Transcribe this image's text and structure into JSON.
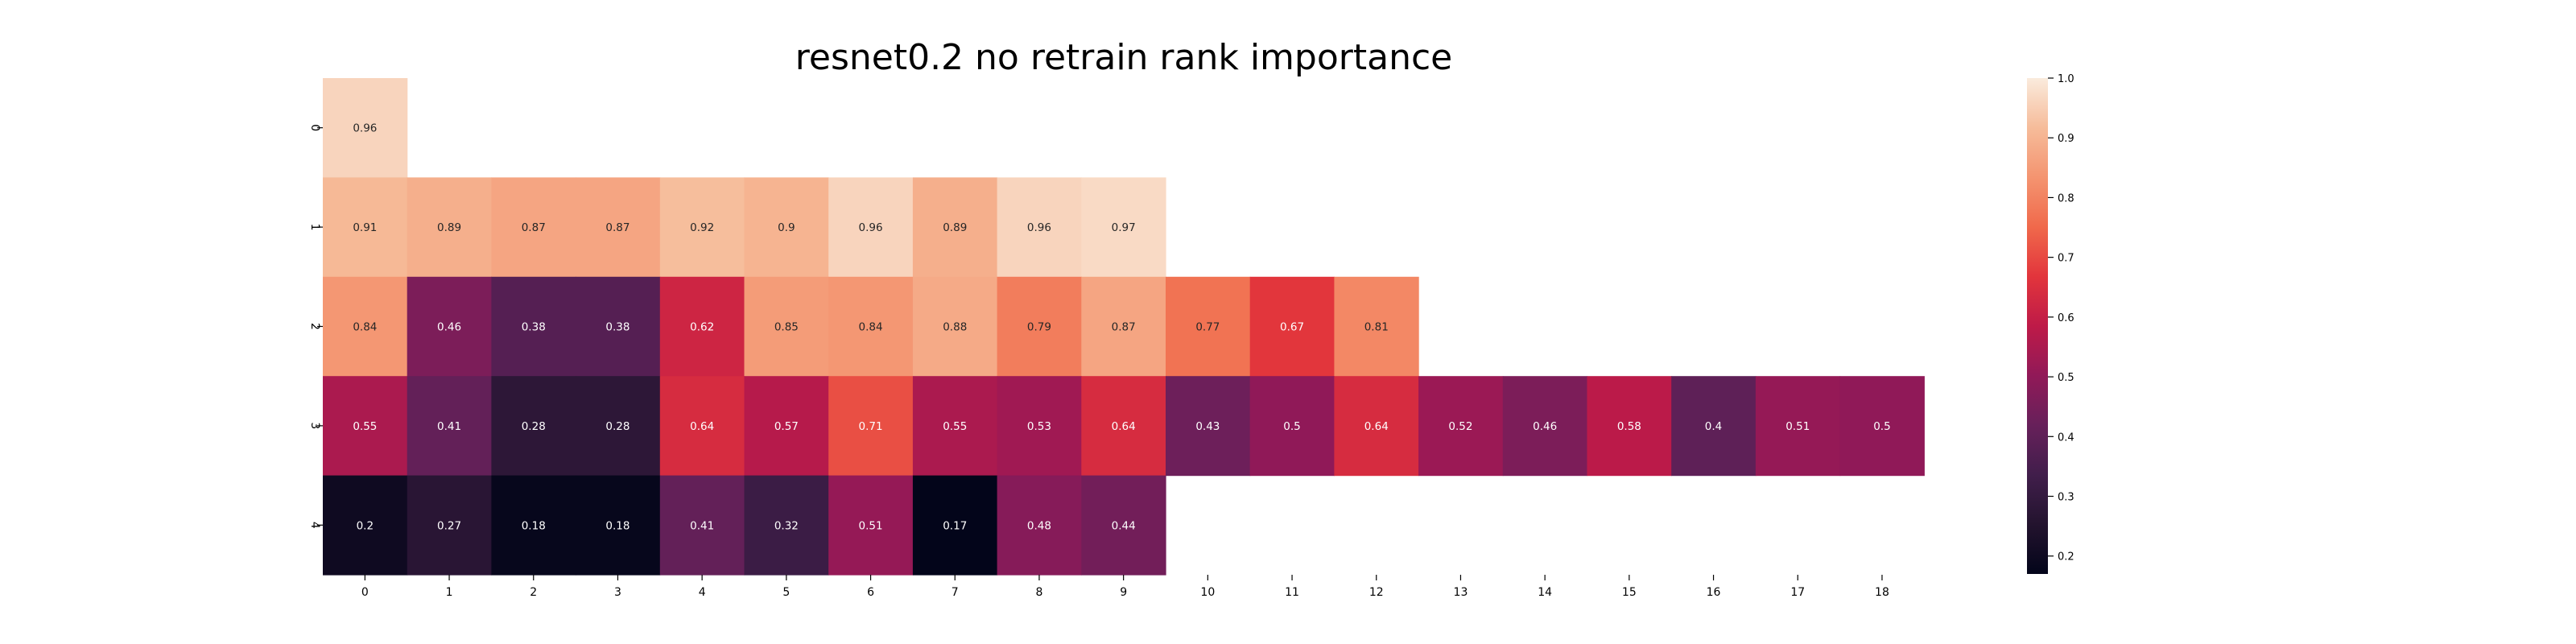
{
  "chart_data": {
    "type": "heatmap",
    "title": "resnet0.2 no retrain rank importance",
    "xlabel": "",
    "ylabel": "",
    "x_categories": [
      "0",
      "1",
      "2",
      "3",
      "4",
      "5",
      "6",
      "7",
      "8",
      "9",
      "10",
      "11",
      "12",
      "13",
      "14",
      "15",
      "16",
      "17",
      "18"
    ],
    "y_categories": [
      "0",
      "1",
      "2",
      "3",
      "4"
    ],
    "rows": [
      [
        0.96
      ],
      [
        0.91,
        0.89,
        0.87,
        0.87,
        0.92,
        0.9,
        0.96,
        0.89,
        0.96,
        0.97
      ],
      [
        0.84,
        0.46,
        0.38,
        0.38,
        0.62,
        0.85,
        0.84,
        0.88,
        0.79,
        0.87,
        0.77,
        0.67,
        0.81
      ],
      [
        0.55,
        0.41,
        0.28,
        0.28,
        0.64,
        0.57,
        0.71,
        0.55,
        0.53,
        0.64,
        0.43,
        0.5,
        0.64,
        0.52,
        0.46,
        0.58,
        0.4,
        0.51,
        0.5
      ],
      [
        0.2,
        0.27,
        0.18,
        0.18,
        0.41,
        0.32,
        0.51,
        0.17,
        0.48,
        0.44
      ]
    ],
    "colormap": "rocket",
    "vmin": 0.17,
    "vmax": 1.0,
    "colorbar_ticks": [
      "0.2",
      "0.3",
      "0.4",
      "0.5",
      "0.6",
      "0.7",
      "0.8",
      "0.9",
      "1.0"
    ],
    "grid": false,
    "legend": "colorbar-right"
  }
}
